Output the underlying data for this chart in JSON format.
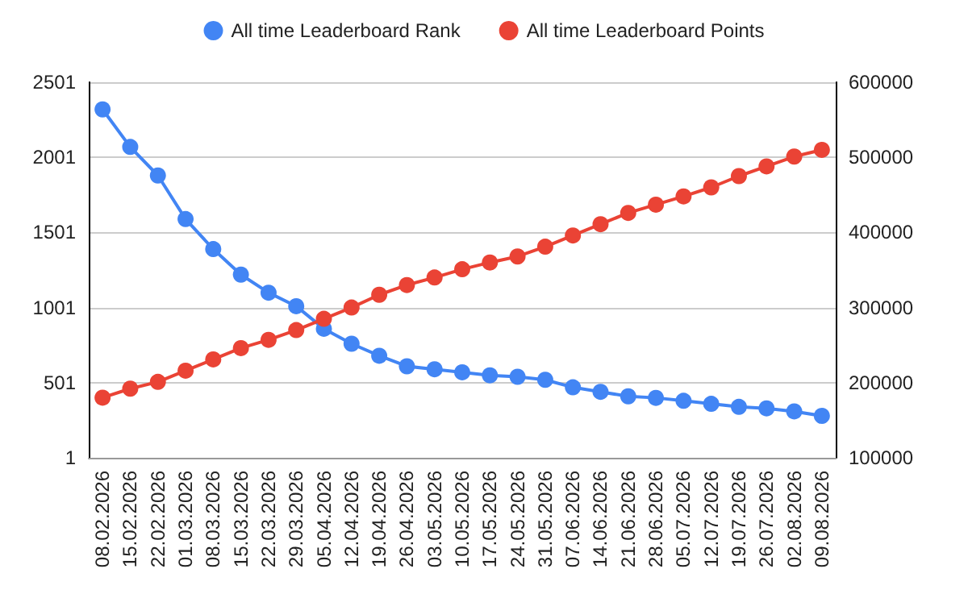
{
  "chart_data": {
    "type": "line",
    "categories": [
      "08.02.2026",
      "15.02.2026",
      "22.02.2026",
      "01.03.2026",
      "08.03.2026",
      "15.03.2026",
      "22.03.2026",
      "29.03.2026",
      "05.04.2026",
      "12.04.2026",
      "19.04.2026",
      "26.04.2026",
      "03.05.2026",
      "10.05.2026",
      "17.05.2026",
      "24.05.2026",
      "31.05.2026",
      "07.06.2026",
      "14.06.2026",
      "21.06.2026",
      "28.06.2026",
      "05.07.2026",
      "12.07.2026",
      "19.07.2026",
      "26.07.2026",
      "02.08.2026",
      "09.08.2026"
    ],
    "series": [
      {
        "name": "All time Leaderboard Rank",
        "color": "#4285f4",
        "values": [
          2320,
          2070,
          1880,
          1590,
          1390,
          1220,
          1100,
          1010,
          860,
          760,
          680,
          610,
          590,
          570,
          550,
          540,
          520,
          470,
          440,
          410,
          400,
          380,
          360,
          340,
          330,
          310,
          280
        ]
      },
      {
        "name": "All time Leaderboard Points",
        "color": "#ea4335",
        "axis": "y2",
        "values": [
          180000,
          192000,
          201000,
          216000,
          231000,
          246000,
          257000,
          270000,
          285000,
          300000,
          317000,
          330000,
          340000,
          351000,
          360000,
          368000,
          381000,
          396000,
          411000,
          426000,
          437000,
          448000,
          460000,
          475000,
          488000,
          501000,
          510000
        ]
      }
    ],
    "ylim": [
      1,
      2501
    ],
    "yticks": [
      1,
      501,
      1001,
      1501,
      2001,
      2501
    ],
    "y2lim": [
      100000,
      600000
    ],
    "y2ticks": [
      100000,
      200000,
      300000,
      400000,
      500000,
      600000
    ],
    "grid": "y",
    "legend": "top",
    "marker": "circle",
    "line_style": "solid"
  }
}
